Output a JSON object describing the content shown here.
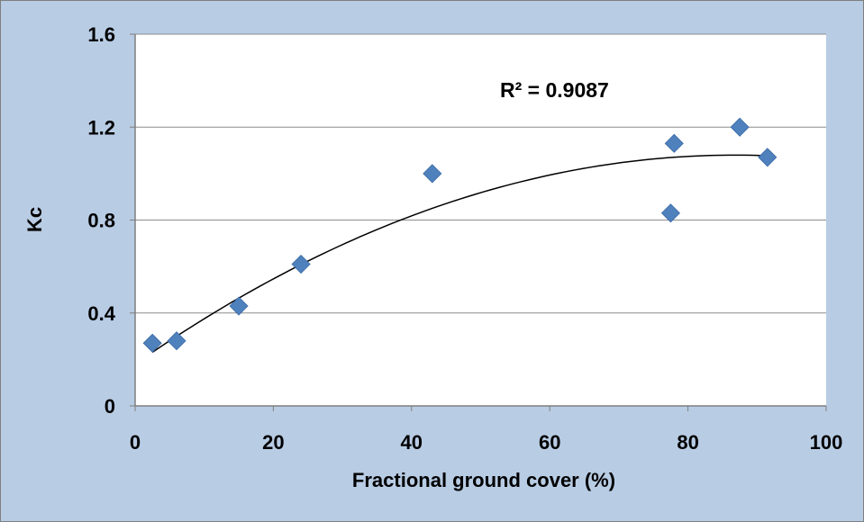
{
  "chart_data": {
    "type": "scatter",
    "title": "",
    "xlabel": "Fractional ground cover (%)",
    "ylabel": "Kc",
    "xlim": [
      0,
      100
    ],
    "ylim": [
      0,
      1.6
    ],
    "xticks": [
      0,
      20,
      40,
      60,
      80,
      100
    ],
    "yticks": [
      0,
      0.4,
      0.8,
      1.2,
      1.6
    ],
    "xtick_labels": [
      "0",
      "20",
      "40",
      "60",
      "80",
      "100"
    ],
    "ytick_labels": [
      "0",
      "0.4",
      "0.8",
      "1.2",
      "1.6"
    ],
    "grid": "horizontal",
    "legend": "none",
    "marker": "diamond",
    "marker_color": "#4f81bd",
    "background_color": "#b8cce4",
    "plot_area_color": "#ffffff",
    "points": [
      {
        "x": 2.5,
        "y": 0.27
      },
      {
        "x": 6,
        "y": 0.28
      },
      {
        "x": 15,
        "y": 0.43
      },
      {
        "x": 24,
        "y": 0.61
      },
      {
        "x": 43,
        "y": 1.0
      },
      {
        "x": 77.5,
        "y": 0.83
      },
      {
        "x": 78,
        "y": 1.13
      },
      {
        "x": 87.5,
        "y": 1.2
      },
      {
        "x": 91.5,
        "y": 1.07
      }
    ],
    "trendline": {
      "type": "polynomial",
      "order": 2,
      "x_range": [
        2.5,
        91.5
      ],
      "samples": [
        {
          "x": 2.5,
          "y": 0.24
        },
        {
          "x": 20,
          "y": 0.53
        },
        {
          "x": 40,
          "y": 0.82
        },
        {
          "x": 60,
          "y": 1.0
        },
        {
          "x": 80,
          "y": 1.08
        },
        {
          "x": 91.5,
          "y": 1.07
        }
      ]
    },
    "annotation": "R² = 0.9087"
  }
}
